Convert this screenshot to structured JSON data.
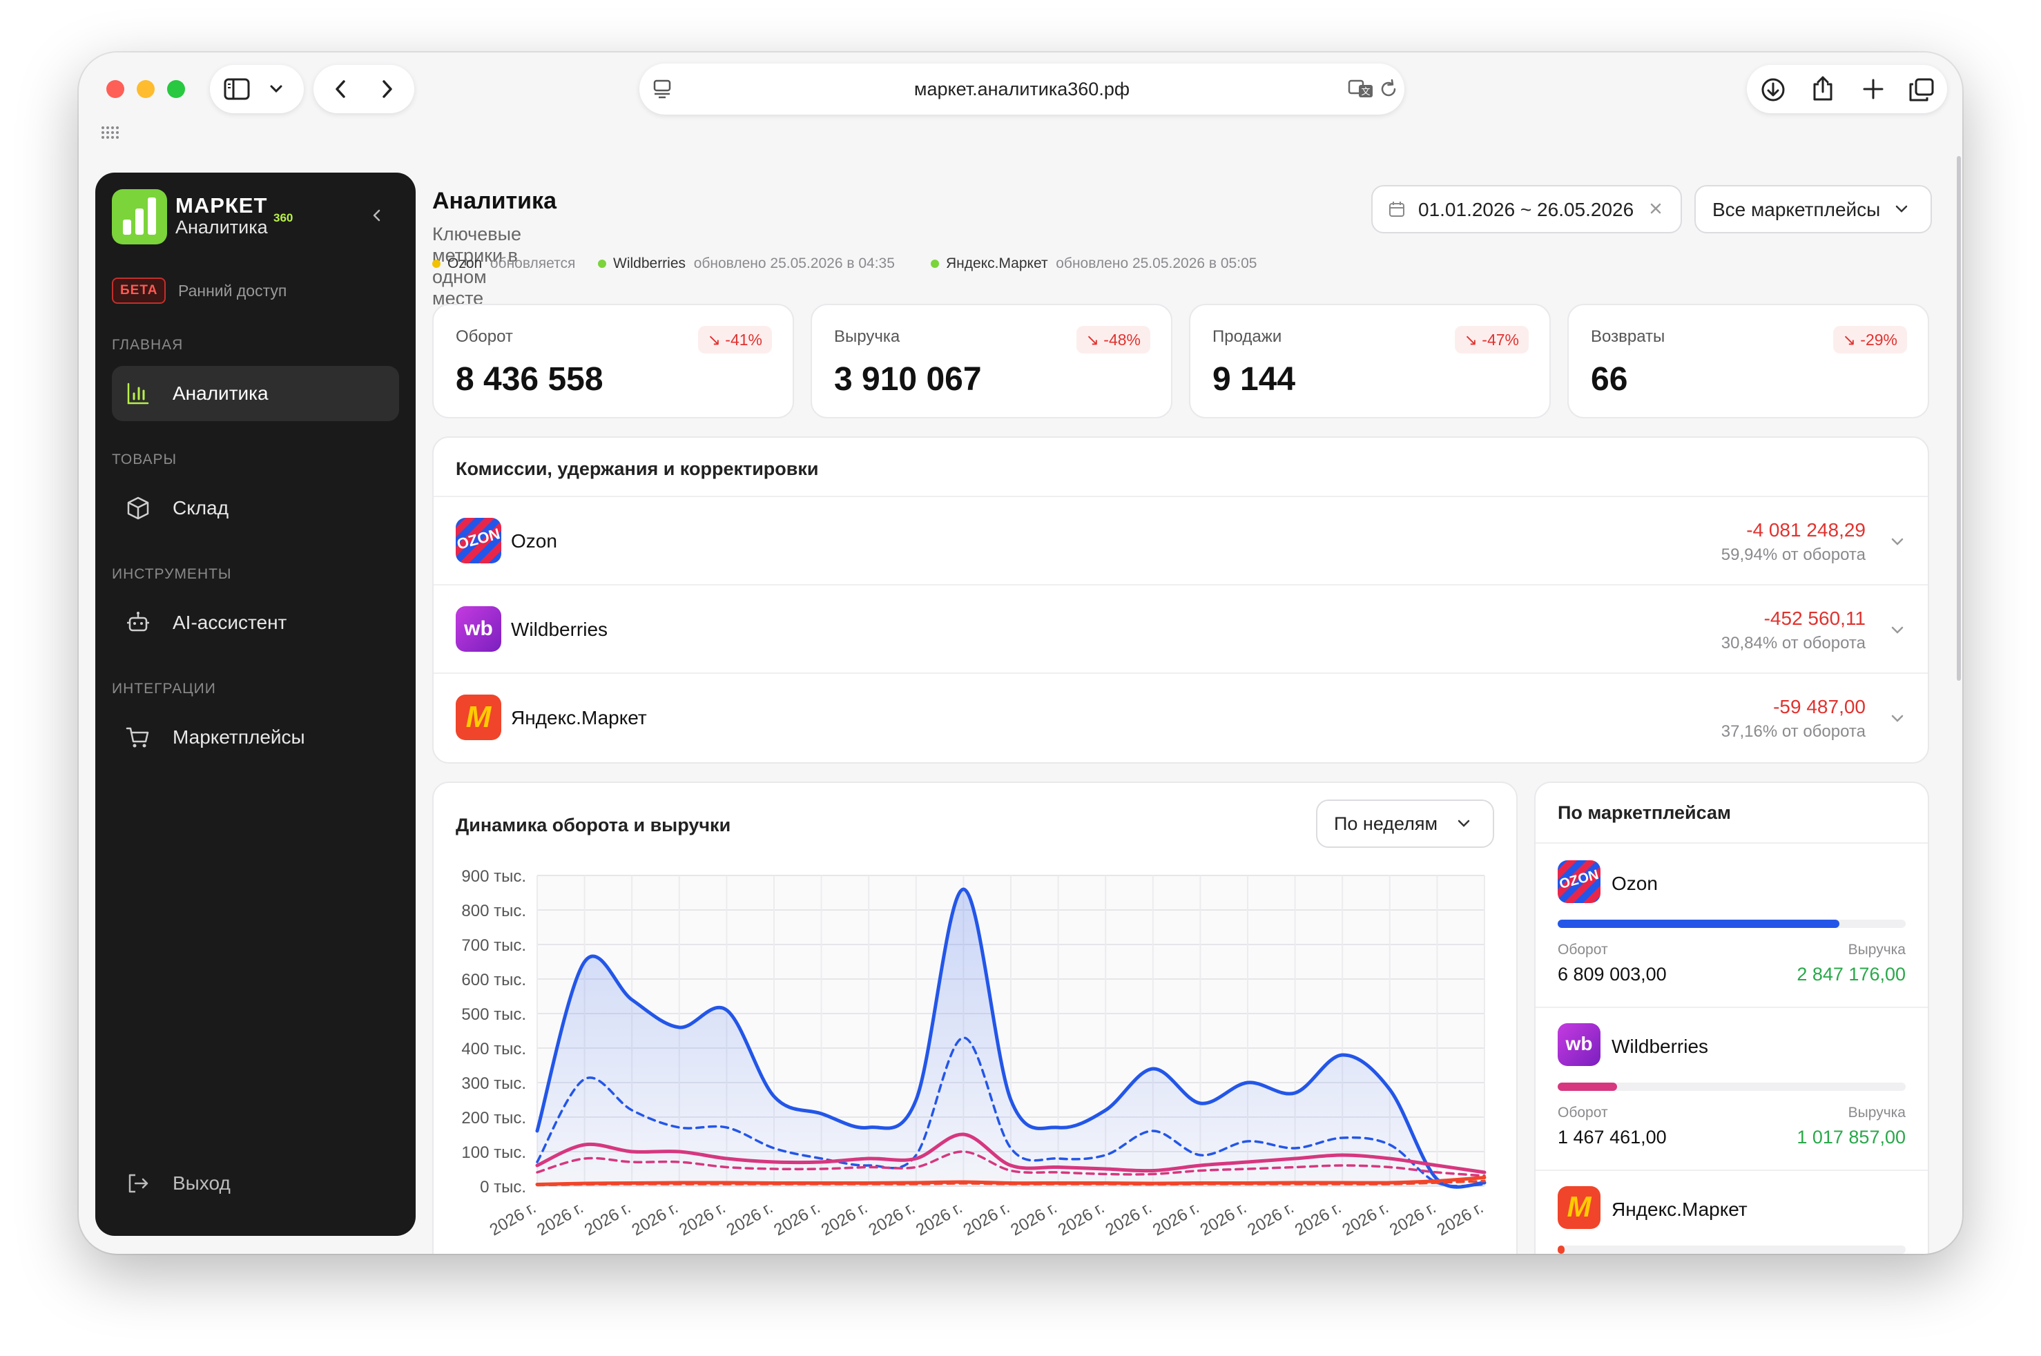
{
  "browser": {
    "url": "маркет.аналитика360.рф"
  },
  "app": {
    "logo_title": "МАРКЕТ",
    "logo_sup": "360",
    "logo_sub": "Аналитика",
    "beta_badge": "БЕТА",
    "beta_text": "Ранний доступ"
  },
  "sidebar": {
    "sections": [
      {
        "title": "ГЛАВНАЯ",
        "item": "Аналитика",
        "icon": "bar-chart-icon",
        "active": true
      },
      {
        "title": "ТОВАРЫ",
        "item": "Склад",
        "icon": "box-icon",
        "active": false
      },
      {
        "title": "ИНСТРУМЕНТЫ",
        "item": "AI-ассистент",
        "icon": "robot-icon",
        "active": false
      },
      {
        "title": "ИНТЕГРАЦИИ",
        "item": "Маркетплейсы",
        "icon": "cart-icon",
        "active": false
      }
    ],
    "logout": "Выход"
  },
  "header": {
    "title": "Аналитика",
    "subtitle": "Ключевые метрики в одном месте",
    "date_range": "01.01.2026 ~ 26.05.2026",
    "marketplace_select": "Все маркетплейсы"
  },
  "status": [
    {
      "name": "Ozon",
      "text": "обновляется",
      "color": "#f2c200"
    },
    {
      "name": "Wildberries",
      "text": "обновлено  25.05.2026 в 04:35",
      "color": "#7bd43a"
    },
    {
      "name": "Яндекс.Маркет",
      "text": "обновлено  25.05.2026 в 05:05",
      "color": "#7bd43a"
    }
  ],
  "kpis": [
    {
      "label": "Оборот",
      "value": "8 436 558",
      "delta": "-41%"
    },
    {
      "label": "Выручка",
      "value": "3 910 067",
      "delta": "-48%"
    },
    {
      "label": "Продажи",
      "value": "9 144",
      "delta": "-47%"
    },
    {
      "label": "Возвраты",
      "value": "66",
      "delta": "-29%"
    }
  ],
  "commissions": {
    "title": "Комиссии, удержания и корректировки",
    "rows": [
      {
        "name": "Ozon",
        "amount": "-4 081 248,29",
        "percent": "59,94% от оборота"
      },
      {
        "name": "Wildberries",
        "amount": "-452 560,11",
        "percent": "30,84% от оборота"
      },
      {
        "name": "Яндекс.Маркет",
        "amount": "-59 487,00",
        "percent": "37,16% от оборота"
      }
    ]
  },
  "dynamics": {
    "title": "Динамика оборота и выручки",
    "period_select": "По неделям"
  },
  "by_marketplace": {
    "title": "По маркетплейсам",
    "turnover_label": "Оборот",
    "revenue_label": "Выручка",
    "items": [
      {
        "name": "Ozon",
        "turnover": "6 809 003,00",
        "revenue": "2 847 176,00",
        "share": 0.81,
        "color": "#2356e8"
      },
      {
        "name": "Wildberries",
        "turnover": "1 467 461,00",
        "revenue": "1 017 857,00",
        "share": 0.17,
        "color": "#d6377f"
      },
      {
        "name": "Яндекс.Маркет",
        "turnover": "",
        "revenue": "",
        "share": 0.02,
        "color": "#f0452a"
      }
    ]
  },
  "chart_data": {
    "type": "line",
    "title": "Динамика оборота и выручки",
    "y_tick_labels": [
      "900 тыс.",
      "800 тыс.",
      "700 тыс.",
      "600 тыс.",
      "500 тыс.",
      "400 тыс.",
      "300 тыс.",
      "200 тыс.",
      "100 тыс.",
      "0 тыс."
    ],
    "ylim": [
      0,
      900000
    ],
    "x_tick_label": "2026 г.",
    "x_count": 21,
    "grid": true,
    "series": [
      {
        "style": "solid",
        "color": "#2356e8",
        "fill": true,
        "values": [
          160000,
          650000,
          540000,
          460000,
          510000,
          260000,
          210000,
          170000,
          250000,
          860000,
          250000,
          170000,
          220000,
          340000,
          240000,
          300000,
          270000,
          380000,
          280000,
          20000,
          10000
        ]
      },
      {
        "style": "dashed",
        "color": "#2356e8",
        "fill": false,
        "values": [
          70000,
          310000,
          220000,
          170000,
          170000,
          110000,
          80000,
          60000,
          90000,
          430000,
          110000,
          80000,
          90000,
          160000,
          90000,
          130000,
          110000,
          140000,
          120000,
          10000,
          5000
        ]
      },
      {
        "style": "solid",
        "color": "#d6377f",
        "fill": false,
        "values": [
          60000,
          120000,
          100000,
          100000,
          80000,
          70000,
          70000,
          80000,
          80000,
          150000,
          60000,
          55000,
          50000,
          45000,
          60000,
          70000,
          80000,
          90000,
          80000,
          60000,
          40000
        ]
      },
      {
        "style": "dashed",
        "color": "#d6377f",
        "fill": false,
        "values": [
          40000,
          80000,
          70000,
          70000,
          55000,
          50000,
          50000,
          55000,
          55000,
          100000,
          45000,
          40000,
          35000,
          35000,
          45000,
          50000,
          55000,
          60000,
          55000,
          40000,
          30000
        ]
      },
      {
        "style": "solid",
        "color": "#f0452a",
        "fill": false,
        "values": [
          5000,
          8000,
          9000,
          10000,
          10000,
          9000,
          9000,
          9000,
          10000,
          12000,
          9000,
          9000,
          9000,
          8000,
          9000,
          9000,
          10000,
          10000,
          10000,
          15000,
          25000
        ]
      },
      {
        "style": "dashed",
        "color": "#f0452a",
        "fill": false,
        "values": [
          3000,
          5000,
          6000,
          6000,
          6000,
          6000,
          6000,
          6000,
          6000,
          8000,
          6000,
          6000,
          6000,
          5000,
          6000,
          6000,
          6000,
          6000,
          6000,
          10000,
          15000
        ]
      }
    ]
  }
}
